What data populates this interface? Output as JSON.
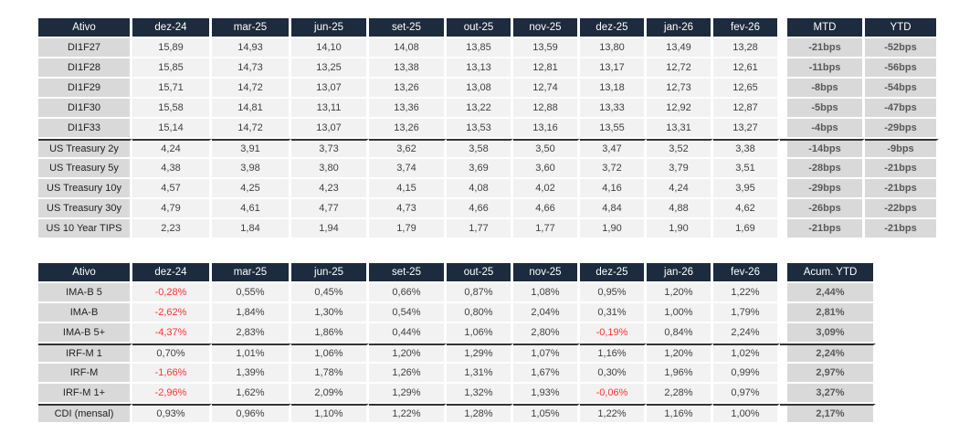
{
  "colors": {
    "header_bg": "#1c2b3d",
    "header_text": "#ffffff",
    "label_bg": "#d9d9d9",
    "cell_bg": "#f2f2f2",
    "summary_bg": "#d9d9d9",
    "text": "#3f3f3f",
    "summary_text": "#595959",
    "negative": "#ff3333",
    "separator_line": "#333333"
  },
  "chart_data": [
    {
      "type": "table",
      "columns": [
        "Ativo",
        "dez-24",
        "mar-25",
        "jun-25",
        "set-25",
        "out-25",
        "nov-25",
        "dez-25",
        "jan-26",
        "fev-26",
        "MTD",
        "YTD"
      ],
      "summary_count": 2,
      "red_if_negative": false,
      "rows": [
        {
          "label": "DI1F27",
          "values": [
            "15,89",
            "14,93",
            "14,10",
            "14,08",
            "13,85",
            "13,59",
            "13,80",
            "13,49",
            "13,28"
          ],
          "summary": [
            "-21bps",
            "-52bps"
          ],
          "separator_above": false
        },
        {
          "label": "DI1F28",
          "values": [
            "15,85",
            "14,73",
            "13,25",
            "13,38",
            "13,13",
            "12,81",
            "13,17",
            "12,72",
            "12,61"
          ],
          "summary": [
            "-11bps",
            "-56bps"
          ],
          "separator_above": false
        },
        {
          "label": "DI1F29",
          "values": [
            "15,71",
            "14,72",
            "13,07",
            "13,26",
            "13,08",
            "12,74",
            "13,18",
            "12,73",
            "12,65"
          ],
          "summary": [
            "-8bps",
            "-54bps"
          ],
          "separator_above": false
        },
        {
          "label": "DI1F30",
          "values": [
            "15,58",
            "14,81",
            "13,11",
            "13,36",
            "13,22",
            "12,88",
            "13,33",
            "12,92",
            "12,87"
          ],
          "summary": [
            "-5bps",
            "-47bps"
          ],
          "separator_above": false
        },
        {
          "label": "DI1F33",
          "values": [
            "15,14",
            "14,72",
            "13,07",
            "13,26",
            "13,53",
            "13,16",
            "13,55",
            "13,31",
            "13,27"
          ],
          "summary": [
            "-4bps",
            "-29bps"
          ],
          "separator_above": false
        },
        {
          "label": "US Treasury 2y",
          "values": [
            "4,24",
            "3,91",
            "3,73",
            "3,62",
            "3,58",
            "3,50",
            "3,47",
            "3,52",
            "3,38"
          ],
          "summary": [
            "-14bps",
            "-9bps"
          ],
          "separator_above": true
        },
        {
          "label": "US Treasury 5y",
          "values": [
            "4,38",
            "3,98",
            "3,80",
            "3,74",
            "3,69",
            "3,60",
            "3,72",
            "3,79",
            "3,51"
          ],
          "summary": [
            "-28bps",
            "-21bps"
          ],
          "separator_above": false
        },
        {
          "label": "US Treasury 10y",
          "values": [
            "4,57",
            "4,25",
            "4,23",
            "4,15",
            "4,08",
            "4,02",
            "4,16",
            "4,24",
            "3,95"
          ],
          "summary": [
            "-29bps",
            "-21bps"
          ],
          "separator_above": false
        },
        {
          "label": "US Treasury 30y",
          "values": [
            "4,79",
            "4,61",
            "4,77",
            "4,73",
            "4,66",
            "4,66",
            "4,84",
            "4,88",
            "4,62"
          ],
          "summary": [
            "-26bps",
            "-22bps"
          ],
          "separator_above": false
        },
        {
          "label": "US 10 Year TIPS",
          "values": [
            "2,23",
            "1,84",
            "1,94",
            "1,79",
            "1,77",
            "1,77",
            "1,90",
            "1,90",
            "1,69"
          ],
          "summary": [
            "-21bps",
            "-21bps"
          ],
          "separator_above": false
        }
      ]
    },
    {
      "type": "table",
      "columns": [
        "Ativo",
        "dez-24",
        "mar-25",
        "jun-25",
        "set-25",
        "out-25",
        "nov-25",
        "dez-25",
        "jan-26",
        "fev-26",
        "Acum. YTD"
      ],
      "summary_count": 1,
      "red_if_negative": true,
      "rows": [
        {
          "label": "IMA-B 5",
          "values": [
            "-0,28%",
            "0,55%",
            "0,45%",
            "0,66%",
            "0,87%",
            "1,08%",
            "0,95%",
            "1,20%",
            "1,22%"
          ],
          "summary": [
            "2,44%"
          ],
          "separator_above": false
        },
        {
          "label": "IMA-B",
          "values": [
            "-2,62%",
            "1,84%",
            "1,30%",
            "0,54%",
            "0,80%",
            "2,04%",
            "0,31%",
            "1,00%",
            "1,79%"
          ],
          "summary": [
            "2,81%"
          ],
          "separator_above": false
        },
        {
          "label": "IMA-B 5+",
          "values": [
            "-4,37%",
            "2,83%",
            "1,86%",
            "0,44%",
            "1,06%",
            "2,80%",
            "-0,19%",
            "0,84%",
            "2,24%"
          ],
          "summary": [
            "3,09%"
          ],
          "separator_above": false
        },
        {
          "label": "IRF-M 1",
          "values": [
            "0,70%",
            "1,01%",
            "1,06%",
            "1,20%",
            "1,29%",
            "1,07%",
            "1,16%",
            "1,20%",
            "1,02%"
          ],
          "summary": [
            "2,24%"
          ],
          "separator_above": true
        },
        {
          "label": "IRF-M",
          "values": [
            "-1,66%",
            "1,39%",
            "1,78%",
            "1,26%",
            "1,31%",
            "1,67%",
            "0,30%",
            "1,96%",
            "0,99%"
          ],
          "summary": [
            "2,97%"
          ],
          "separator_above": false
        },
        {
          "label": "IRF-M 1+",
          "values": [
            "-2,96%",
            "1,62%",
            "2,09%",
            "1,29%",
            "1,32%",
            "1,93%",
            "-0,06%",
            "2,28%",
            "0,97%"
          ],
          "summary": [
            "3,27%"
          ],
          "separator_above": false
        },
        {
          "label": "CDI (mensal)",
          "values": [
            "0,93%",
            "0,96%",
            "1,10%",
            "1,22%",
            "1,28%",
            "1,05%",
            "1,22%",
            "1,16%",
            "1,00%"
          ],
          "summary": [
            "2,17%"
          ],
          "separator_above": true
        }
      ]
    }
  ]
}
